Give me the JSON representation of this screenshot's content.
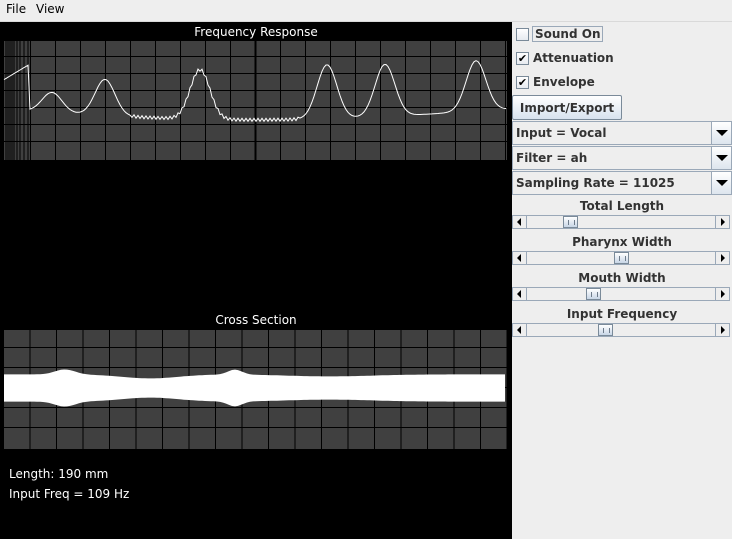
{
  "menu": {
    "file": "File",
    "view": "View"
  },
  "plots": {
    "frequency_title": "Frequency Response",
    "cross_title": "Cross Section"
  },
  "info": {
    "length": "Length: 190 mm",
    "input_freq": "Input Freq = 109 Hz"
  },
  "controls": {
    "sound_on": {
      "label": "Sound On",
      "checked": false
    },
    "attenuation": {
      "label": "Attenuation",
      "checked": true
    },
    "envelope": {
      "label": "Envelope",
      "checked": true
    },
    "import_export": "Import/Export",
    "input_combo": "Input = Vocal",
    "filter_combo": "Filter = ah",
    "sampling_combo": "Sampling Rate = 11025",
    "check_glyph": "✔"
  },
  "sliders": [
    {
      "label": "Total Length",
      "value": 0.21
    },
    {
      "label": "Pharynx Width",
      "value": 0.5
    },
    {
      "label": "Mouth Width",
      "value": 0.34
    },
    {
      "label": "Input Frequency",
      "value": 0.41
    }
  ],
  "colors": {
    "canvas_bg": "#000000",
    "plot_bg": "#404040",
    "grid": "#000000",
    "trace": "#ffffff"
  }
}
